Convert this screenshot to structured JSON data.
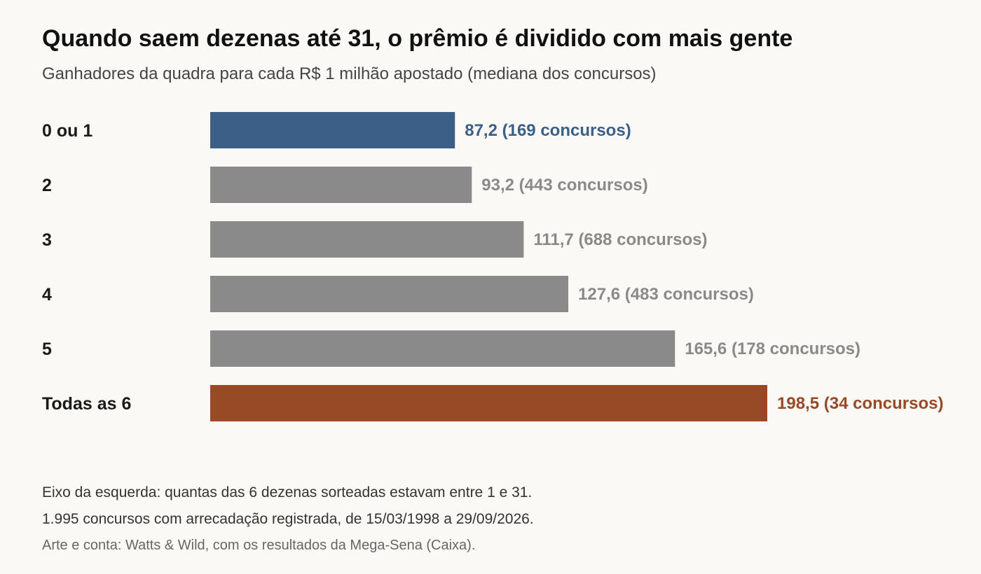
{
  "header": {
    "title": "Quando saem dezenas até 31, o prêmio é dividido com mais gente",
    "subtitle": "Ganhadores da quadra para cada R$ 1 milhão apostado (mediana dos concursos)"
  },
  "colors": {
    "highlight_low": "#3b5f87",
    "neutral": "#8a8a8a",
    "highlight_high": "#984a27",
    "background": "#fbf9f5"
  },
  "chart_data": {
    "type": "bar",
    "orientation": "horizontal",
    "title": "Quando saem dezenas até 31, o prêmio é dividido com mais gente",
    "subtitle": "Ganhadores da quadra para cada R$ 1 milhão apostado (mediana dos concursos)",
    "categories": [
      "0 ou 1",
      "2",
      "3",
      "4",
      "5",
      "Todas as 6"
    ],
    "values": [
      87.2,
      93.2,
      111.7,
      127.6,
      165.6,
      198.5
    ],
    "value_labels": [
      "87,2",
      "93,2",
      "111,7",
      "127,6",
      "165,6",
      "198,5"
    ],
    "count_labels": [
      "(169 concursos)",
      "(443 concursos)",
      "(688 concursos)",
      "(483 concursos)",
      "(178 concursos)",
      "(34 concursos)"
    ],
    "bar_colors": [
      "#3b5f87",
      "#8a8a8a",
      "#8a8a8a",
      "#8a8a8a",
      "#8a8a8a",
      "#984a27"
    ],
    "xlim": [
      0,
      250
    ],
    "grid": false,
    "legend": "none"
  },
  "notes": {
    "line1": "Eixo da esquerda: quantas das 6 dezenas sorteadas estavam entre 1 e 31.",
    "line2": "1.995 concursos com arrecadação registrada, de 15/03/1998 a 29/09/2026.",
    "source": "Arte e conta: Watts & Wild, com os resultados da Mega-Sena (Caixa)."
  }
}
